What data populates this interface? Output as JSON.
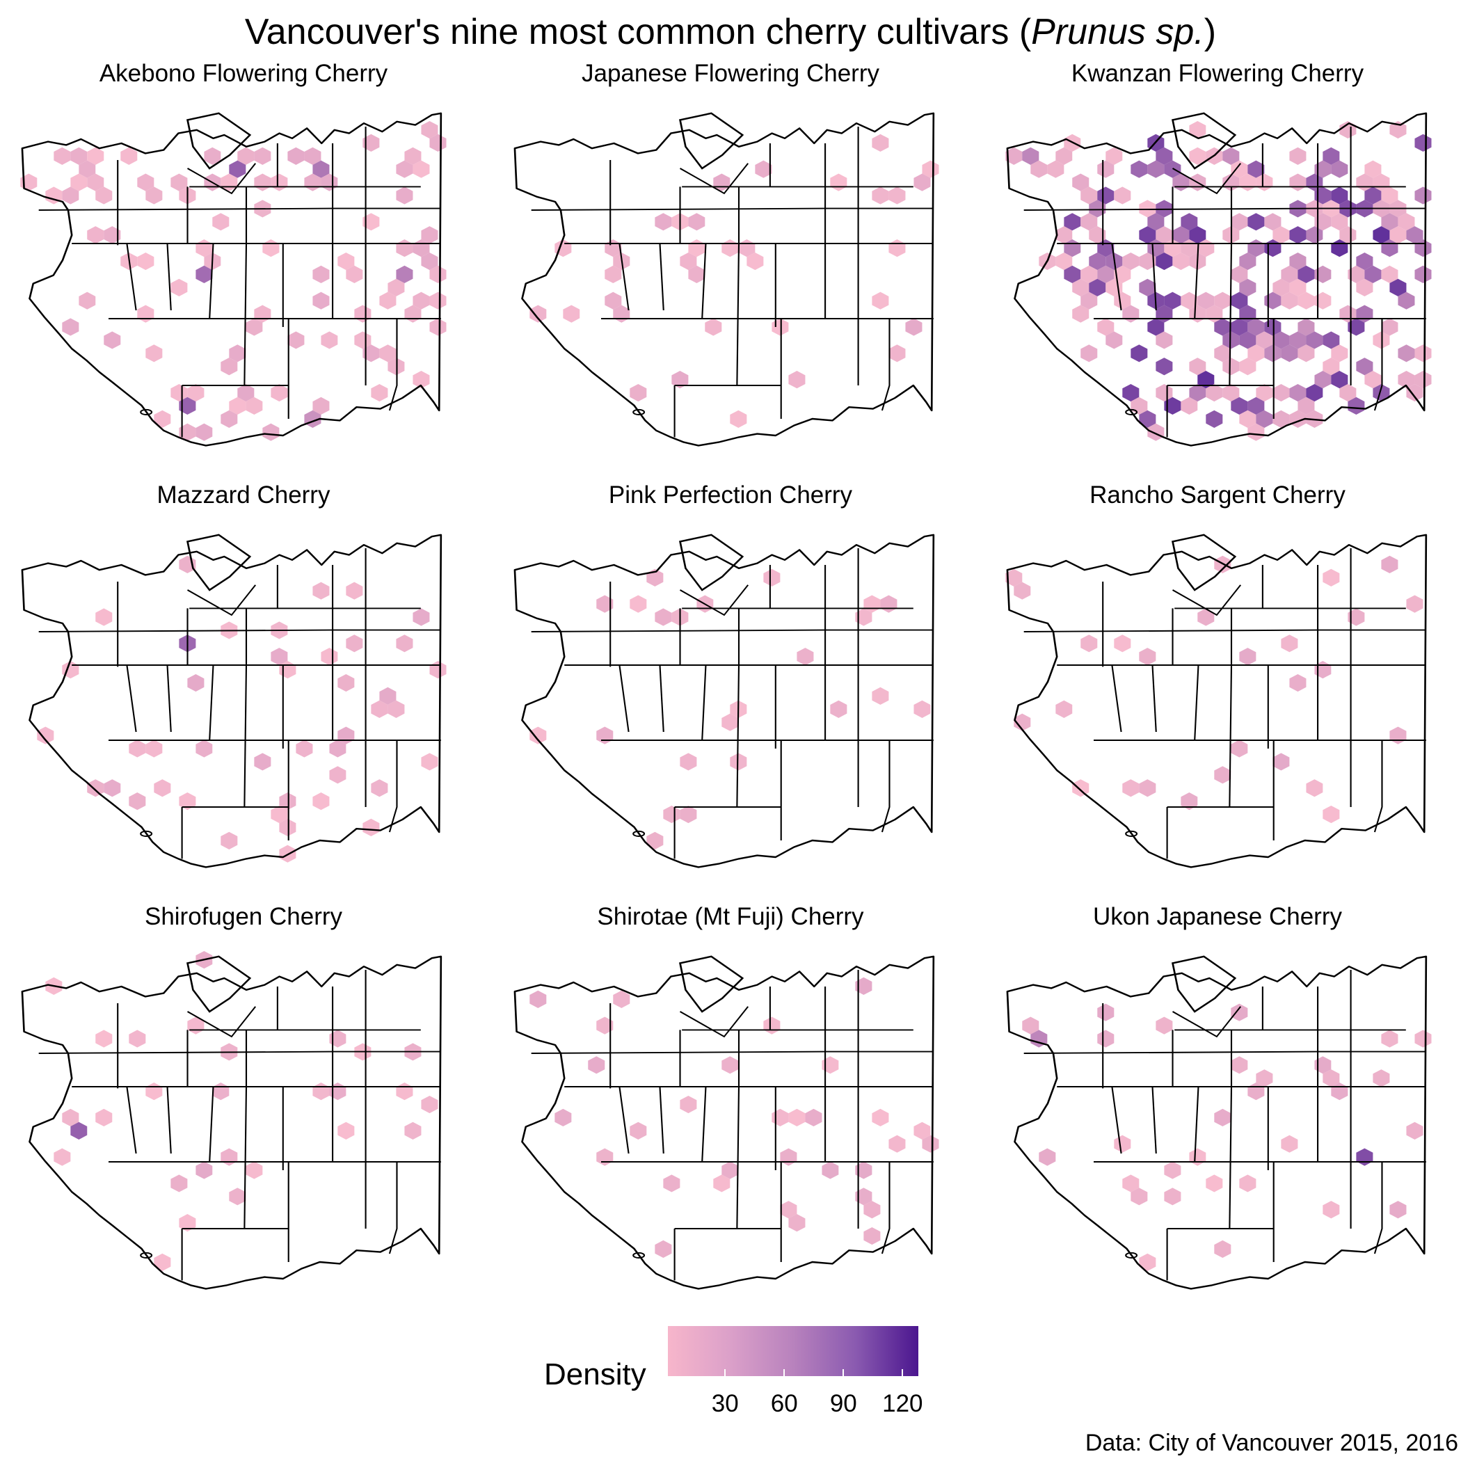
{
  "title": {
    "prefix": "Vancouver's nine most common cherry cultivars (",
    "italic": "Prunus sp.",
    "suffix": ")"
  },
  "panels": [
    {
      "name": "Akebono Flowering Cherry",
      "level": 0.16,
      "purple_share": 0.06
    },
    {
      "name": "Japanese Flowering Cherry",
      "level": 0.06,
      "purple_share": 0.0
    },
    {
      "name": "Kwanzan Flowering Cherry",
      "level": 0.35,
      "purple_share": 0.5
    },
    {
      "name": "Mazzard Cherry",
      "level": 0.07,
      "purple_share": 0.04
    },
    {
      "name": "Pink Perfection Cherry",
      "level": 0.06,
      "purple_share": 0.05
    },
    {
      "name": "Rancho Sargent Cherry",
      "level": 0.05,
      "purple_share": 0.0
    },
    {
      "name": "Shirofugen Cherry",
      "level": 0.05,
      "purple_share": 0.02
    },
    {
      "name": "Shirotae (Mt Fuji) Cherry",
      "level": 0.04,
      "purple_share": 0.02
    },
    {
      "name": "Ukon Japanese Cherry",
      "level": 0.06,
      "purple_share": 0.06
    }
  ],
  "legend": {
    "title": "Density",
    "ticks": [
      "30",
      "60",
      "90",
      "120"
    ],
    "tick_values": [
      30,
      60,
      90,
      120
    ],
    "range": [
      1,
      128
    ],
    "colors": {
      "low": "#f7b6cb",
      "high": "#4b168f"
    }
  },
  "caption": "Data: City of Vancouver 2015, 2016"
}
